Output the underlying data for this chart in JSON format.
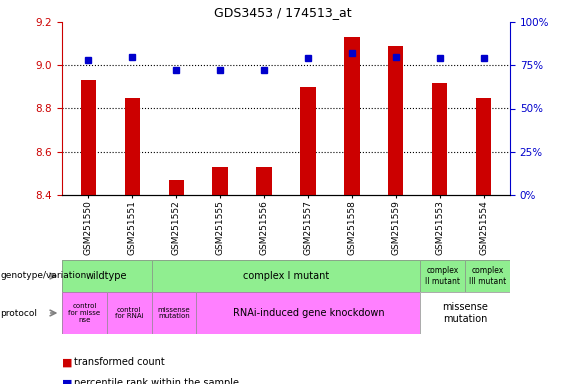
{
  "title": "GDS3453 / 174513_at",
  "samples": [
    "GSM251550",
    "GSM251551",
    "GSM251552",
    "GSM251555",
    "GSM251556",
    "GSM251557",
    "GSM251558",
    "GSM251559",
    "GSM251553",
    "GSM251554"
  ],
  "red_values": [
    8.93,
    8.85,
    8.47,
    8.53,
    8.53,
    8.9,
    9.13,
    9.09,
    8.92,
    8.85
  ],
  "blue_values": [
    78,
    80,
    72,
    72,
    72,
    79,
    82,
    80,
    79,
    79
  ],
  "ylim_left": [
    8.4,
    9.2
  ],
  "ylim_right": [
    0,
    100
  ],
  "yticks_left": [
    8.4,
    8.6,
    8.8,
    9.0,
    9.2
  ],
  "yticks_right": [
    0,
    25,
    50,
    75,
    100
  ],
  "bar_color": "#cc0000",
  "dot_color": "#0000cc",
  "left_axis_color": "#cc0000",
  "right_axis_color": "#0000cc",
  "genotype_colors": {
    "wildtype": "#90ee90",
    "complex_I": "#90ee90",
    "complex_II": "#90ee90",
    "complex_III": "#90ee90"
  },
  "protocol_colors": {
    "ctrl_missense": "#ff80ff",
    "ctrl_rnai": "#ff80ff",
    "missense_mut1": "#ff80ff",
    "rnai": "#ff80ff",
    "missense_mut2": "#ffffff"
  },
  "legend_red_label": "transformed count",
  "legend_blue_label": "percentile rank within the sample"
}
